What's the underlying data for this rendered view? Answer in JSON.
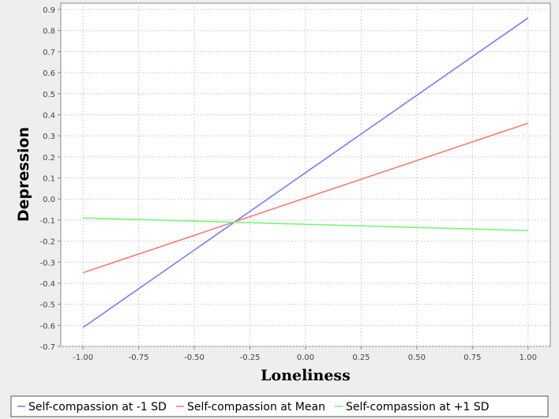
{
  "chart_data": {
    "type": "line",
    "title": "",
    "xlabel": "Loneliness",
    "ylabel": "Depression",
    "xlim": [
      -1.1,
      1.1
    ],
    "ylim": [
      -0.7,
      0.93
    ],
    "x_ticks": [
      "-1.00",
      "-0.75",
      "-0.50",
      "-0.25",
      "0.00",
      "0.25",
      "0.50",
      "0.75",
      "1.00"
    ],
    "x_tick_values": [
      -1.0,
      -0.75,
      -0.5,
      -0.25,
      0.0,
      0.25,
      0.5,
      0.75,
      1.0
    ],
    "y_ticks": [
      "0.9",
      "0.8",
      "0.7",
      "0.6",
      "0.5",
      "0.4",
      "0.3",
      "0.2",
      "0.1",
      "0.0",
      "-0.1",
      "-0.2",
      "-0.3",
      "-0.4",
      "-0.5",
      "-0.6",
      "-0.7"
    ],
    "y_tick_values": [
      0.9,
      0.8,
      0.7,
      0.6,
      0.5,
      0.4,
      0.3,
      0.2,
      0.1,
      0.0,
      -0.1,
      -0.2,
      -0.3,
      -0.4,
      -0.5,
      -0.6,
      -0.7
    ],
    "grid": true,
    "legend_position": "bottom",
    "series": [
      {
        "name": "Self-compassion at -1 SD",
        "color": "#7b7bf5",
        "x": [
          -1.0,
          1.0
        ],
        "y": [
          -0.61,
          0.86
        ]
      },
      {
        "name": "Self-compassion at Mean",
        "color": "#f57b7b",
        "x": [
          -1.0,
          1.0
        ],
        "y": [
          -0.35,
          0.36
        ]
      },
      {
        "name": "Self-compassion at +1 SD",
        "color": "#7bf57b",
        "x": [
          -1.0,
          1.0
        ],
        "y": [
          -0.09,
          -0.15
        ]
      }
    ]
  }
}
